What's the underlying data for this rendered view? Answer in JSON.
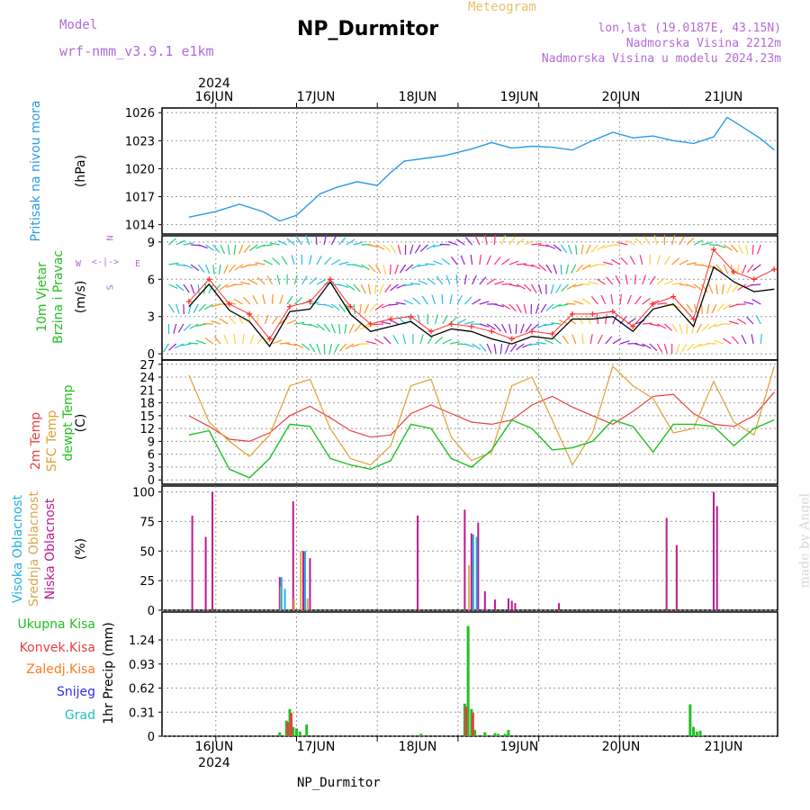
{
  "header": {
    "title": "NP_Durmitor",
    "subtitle": "Meteogram",
    "model_label": "Model",
    "model_value": "wrf-nmm_v3.9.1  e1km",
    "location": "lon,lat (19.0187E, 43.15N)",
    "elevation": "Nadmorska Visina 2212m",
    "model_elevation": "Nadmorska Visina u modelu 2024.23m"
  },
  "footer": {
    "station": "NP_Durmitor",
    "credit": "made by Angel"
  },
  "axis_dates": {
    "year": "2024",
    "days": [
      "16JUN",
      "17JUN",
      "18JUN",
      "19JUN",
      "20JUN",
      "21JUN"
    ]
  },
  "wind_compass": {
    "n": "N",
    "s": "S",
    "e": "E",
    "w": "W"
  },
  "panels": {
    "pressure": {
      "ylabel_main": "Pritisak na nivou mora",
      "ylabel_unit": "(hPa)"
    },
    "wind": {
      "ylabel_main": "10m Vjetar",
      "ylabel_sub": "Brzina i Pravac",
      "ylabel_unit": "(m/s)"
    },
    "temp": {
      "ylabel_a": "2m Temp",
      "ylabel_b": "SFC Temp",
      "ylabel_c": "dewpt Temp",
      "ylabel_unit": "(C)"
    },
    "cloud": {
      "ylabel_a": "Visoka Oblacnost",
      "ylabel_b": "Srednja Oblacnost",
      "ylabel_c": "Niska Oblacnost",
      "ylabel_unit": "(%)"
    },
    "precip": {
      "legend": [
        "Ukupna Kisa",
        "Konvek.Kisa",
        "Zaledj.Kisa",
        "Snijeg",
        "Grad"
      ],
      "ylabel": "1hr Precip (mm)"
    }
  },
  "colors": {
    "pressure": "#2a9be8",
    "wind_speed": "#000000",
    "gust": "#ff3030",
    "t2m": "#e84040",
    "sfc": "#e0a030",
    "dew": "#22c022",
    "high_cloud": "#22b0e0",
    "mid_cloud": "#d8a850",
    "low_cloud": "#c01890",
    "total_rain": "#22c022",
    "conv_rain": "#e84040",
    "frz_rain": "#ff7a20",
    "snow": "#3030e0",
    "hail": "#22c0c0"
  },
  "chart_data": [
    {
      "type": "line",
      "panel": "pressure",
      "ylim": [
        1013,
        1026.5
      ],
      "yticks": [
        1014,
        1017,
        1020,
        1023,
        1026
      ],
      "x_hours": [
        0,
        8,
        15,
        22,
        27,
        32,
        39,
        44,
        50,
        56,
        60,
        64,
        70,
        76,
        84,
        90,
        96,
        102,
        108,
        114,
        120,
        126,
        132,
        138,
        144,
        150,
        156,
        160,
        164,
        170,
        174
      ],
      "series": [
        {
          "name": "Pritisak",
          "values": [
            1014.8,
            1015.4,
            1016.2,
            1015.4,
            1014.4,
            1015.0,
            1017.3,
            1018.0,
            1018.6,
            1018.2,
            1019.6,
            1020.8,
            1021.1,
            1021.4,
            1022.1,
            1022.8,
            1022.2,
            1022.4,
            1022.3,
            1022.0,
            1023.0,
            1023.9,
            1023.3,
            1023.5,
            1023.0,
            1022.7,
            1023.4,
            1025.5,
            1024.6,
            1023.2,
            1022.0
          ]
        }
      ]
    },
    {
      "type": "line",
      "panel": "wind",
      "ylim": [
        -0.5,
        9.5
      ],
      "yticks": [
        0,
        3,
        6,
        9
      ],
      "x_hours": [
        0,
        6,
        12,
        18,
        24,
        30,
        36,
        42,
        48,
        54,
        60,
        66,
        72,
        78,
        84,
        90,
        96,
        102,
        108,
        114,
        120,
        126,
        132,
        138,
        144,
        150,
        156,
        162,
        168,
        174
      ],
      "series": [
        {
          "name": "Brzina",
          "values": [
            3.8,
            5.6,
            3.5,
            2.6,
            0.6,
            3.4,
            3.6,
            5.8,
            3.2,
            1.8,
            2.2,
            2.6,
            1.4,
            2.0,
            1.8,
            1.2,
            0.8,
            1.4,
            1.2,
            2.8,
            2.8,
            3.0,
            1.8,
            3.6,
            4.0,
            2.2,
            7.0,
            5.8,
            5.0,
            5.2
          ]
        },
        {
          "name": "Udar",
          "values": [
            4.2,
            6.0,
            4.0,
            3.2,
            1.2,
            3.8,
            4.2,
            6.0,
            3.8,
            2.4,
            2.8,
            3.0,
            1.8,
            2.4,
            2.2,
            1.8,
            1.2,
            1.8,
            1.6,
            3.2,
            3.2,
            3.4,
            2.2,
            4.0,
            4.6,
            2.8,
            8.4,
            6.6,
            6.0,
            6.8
          ]
        }
      ]
    },
    {
      "type": "line",
      "panel": "temp",
      "ylim": [
        -1,
        28
      ],
      "yticks": [
        0,
        3,
        6,
        9,
        12,
        15,
        18,
        21,
        24,
        27
      ],
      "x_hours": [
        0,
        6,
        12,
        18,
        24,
        30,
        36,
        42,
        48,
        54,
        60,
        66,
        72,
        78,
        84,
        90,
        96,
        102,
        108,
        114,
        120,
        126,
        132,
        138,
        144,
        150,
        156,
        162,
        168,
        174
      ],
      "series": [
        {
          "name": "2m Temp",
          "values": [
            15.0,
            12.5,
            9.5,
            9.0,
            11.0,
            15.0,
            17.2,
            14.5,
            11.5,
            10.0,
            10.5,
            15.5,
            17.5,
            15.5,
            13.5,
            13.0,
            14.0,
            17.5,
            19.5,
            17.0,
            15.0,
            13.0,
            16.0,
            19.5,
            20.0,
            15.5,
            13.0,
            12.5,
            15.0,
            20.5
          ]
        },
        {
          "name": "SFC Temp",
          "values": [
            24.5,
            13.5,
            9.0,
            5.5,
            10.5,
            22.0,
            23.5,
            12.0,
            5.0,
            3.5,
            8.0,
            22.0,
            23.5,
            10.0,
            4.5,
            6.5,
            22.0,
            24.0,
            14.0,
            3.5,
            11.0,
            26.5,
            22.0,
            19.0,
            11.0,
            12.0,
            23.0,
            13.5,
            10.5,
            26.5
          ]
        },
        {
          "name": "dewpt Temp",
          "values": [
            10.5,
            11.5,
            2.5,
            0.5,
            5.0,
            13.0,
            12.5,
            5.0,
            3.5,
            2.5,
            4.5,
            13.0,
            12.0,
            5.0,
            3.0,
            7.0,
            14.0,
            12.0,
            7.0,
            7.5,
            9.0,
            14.0,
            12.5,
            6.5,
            13.0,
            13.0,
            12.5,
            8.0,
            12.0,
            14.0
          ]
        }
      ]
    },
    {
      "type": "bar",
      "panel": "cloud",
      "ylim": [
        0,
        105
      ],
      "yticks": [
        0,
        25,
        50,
        75,
        100
      ],
      "series": [
        {
          "name": "Niska Oblacnost",
          "x_hours": [
            1,
            5,
            7,
            27,
            31,
            34,
            36,
            68,
            82,
            84,
            86,
            88,
            91,
            95,
            96,
            97,
            110,
            142,
            145,
            156,
            157
          ],
          "values": [
            80,
            62,
            100,
            28,
            92,
            50,
            44,
            80,
            85,
            65,
            74,
            16,
            9,
            10,
            8,
            6,
            6,
            78,
            55,
            100,
            88
          ]
        },
        {
          "name": "Srednja Oblacnost",
          "x_hours": [
            27,
            31,
            33,
            35,
            83
          ],
          "values": [
            20,
            10,
            50,
            10,
            38
          ]
        },
        {
          "name": "Visoka Oblacnost",
          "x_hours": [
            27,
            28,
            34,
            84,
            85
          ],
          "values": [
            28,
            18,
            50,
            64,
            62
          ]
        }
      ]
    },
    {
      "type": "bar",
      "panel": "precip",
      "ylim": [
        0,
        1.6
      ],
      "yticks": [
        0,
        0.31,
        0.62,
        0.93,
        1.24
      ],
      "series": [
        {
          "name": "Ukupna Kisa",
          "x_hours": [
            27,
            29,
            30,
            31,
            32,
            33,
            35,
            69,
            82,
            83,
            84,
            85,
            88,
            91,
            92,
            94,
            95,
            149,
            150,
            151,
            152
          ],
          "values": [
            0.05,
            0.2,
            0.35,
            0.12,
            0.1,
            0.06,
            0.15,
            0.03,
            0.42,
            1.42,
            0.35,
            0.08,
            0.05,
            0.04,
            0.03,
            0.03,
            0.08,
            0.41,
            0.12,
            0.06,
            0.07
          ]
        },
        {
          "name": "Konvek.Kisa",
          "x_hours": [
            29,
            30,
            82,
            84
          ],
          "values": [
            0.18,
            0.3,
            0.38,
            0.3
          ]
        }
      ]
    }
  ]
}
